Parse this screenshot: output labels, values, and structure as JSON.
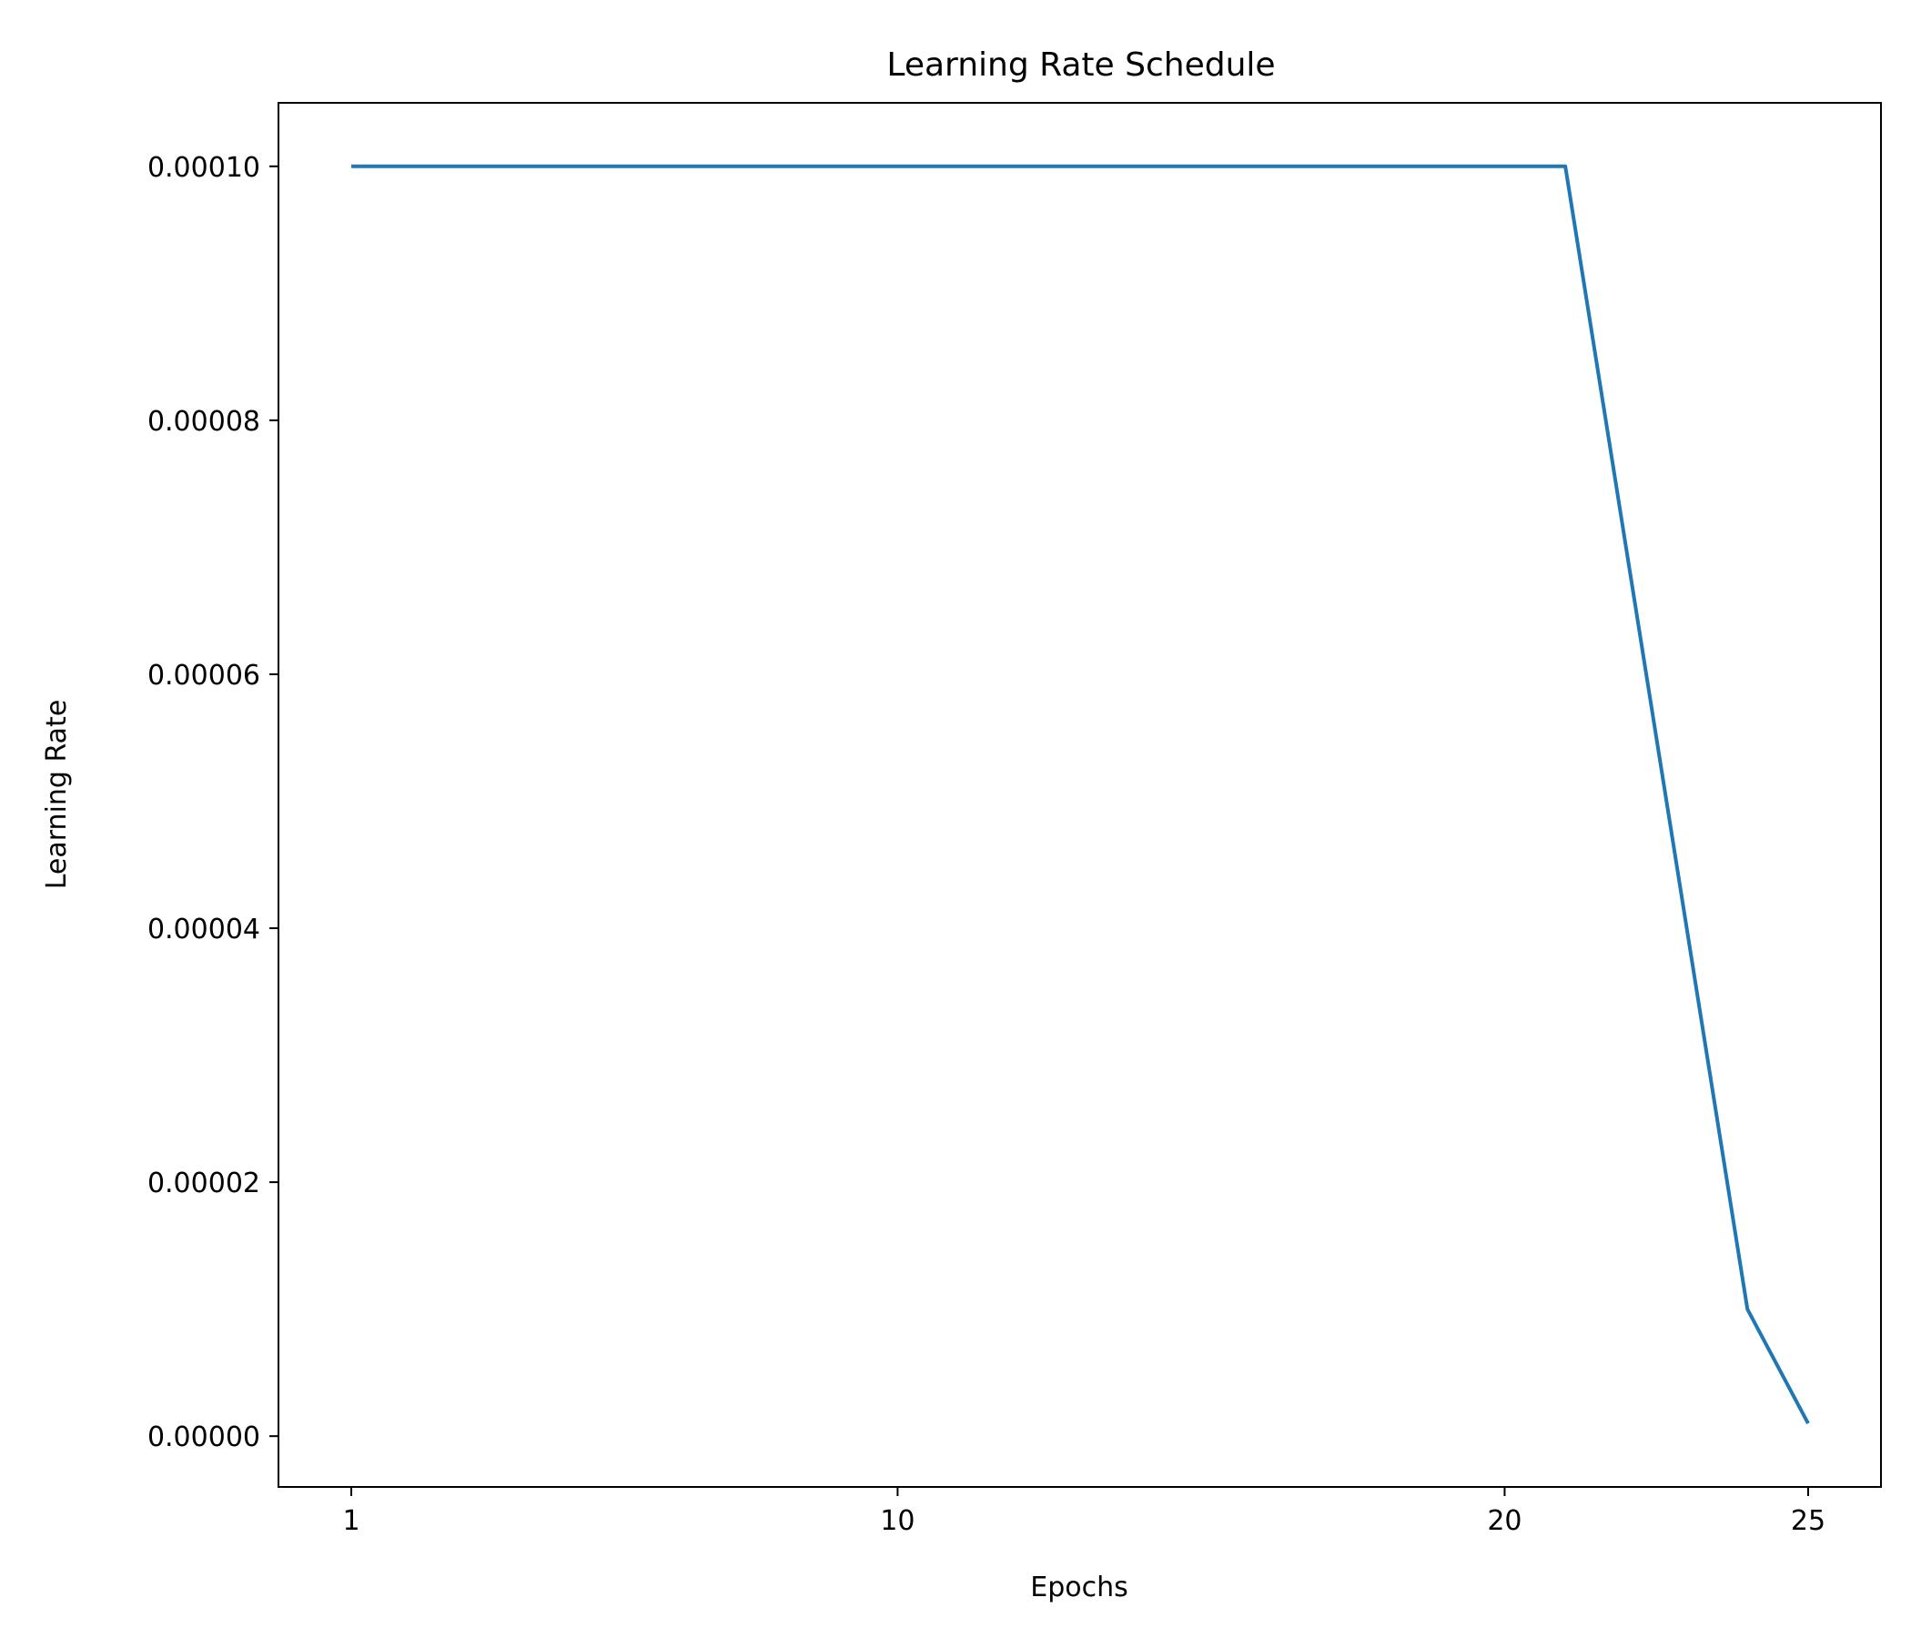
{
  "chart_data": {
    "type": "line",
    "title": "Learning Rate Schedule",
    "xlabel": "Epochs",
    "ylabel": "Learning Rate",
    "xlim": [
      -0.2,
      26.2
    ],
    "ylim": [
      -4e-06,
      0.000105
    ],
    "xticks": [
      1,
      10,
      20,
      25
    ],
    "xtick_labels": [
      "1",
      "10",
      "20",
      "25"
    ],
    "yticks": [
      0,
      2e-05,
      4e-05,
      6e-05,
      8e-05,
      0.0001
    ],
    "ytick_labels": [
      "0.00000",
      "0.00002",
      "0.00004",
      "0.00006",
      "0.00008",
      "0.00010"
    ],
    "grid": false,
    "series": [
      {
        "color": "#1f77b4",
        "x": [
          1,
          2,
          3,
          4,
          5,
          6,
          7,
          8,
          9,
          10,
          11,
          12,
          13,
          14,
          15,
          16,
          17,
          18,
          19,
          20,
          21,
          22,
          23,
          24,
          25
        ],
        "y": [
          0.0001,
          0.0001,
          0.0001,
          0.0001,
          0.0001,
          0.0001,
          0.0001,
          0.0001,
          0.0001,
          0.0001,
          0.0001,
          0.0001,
          0.0001,
          0.0001,
          0.0001,
          0.0001,
          0.0001,
          0.0001,
          0.0001,
          0.0001,
          0.0001,
          7e-05,
          4e-05,
          1e-05,
          1e-06
        ]
      }
    ]
  }
}
